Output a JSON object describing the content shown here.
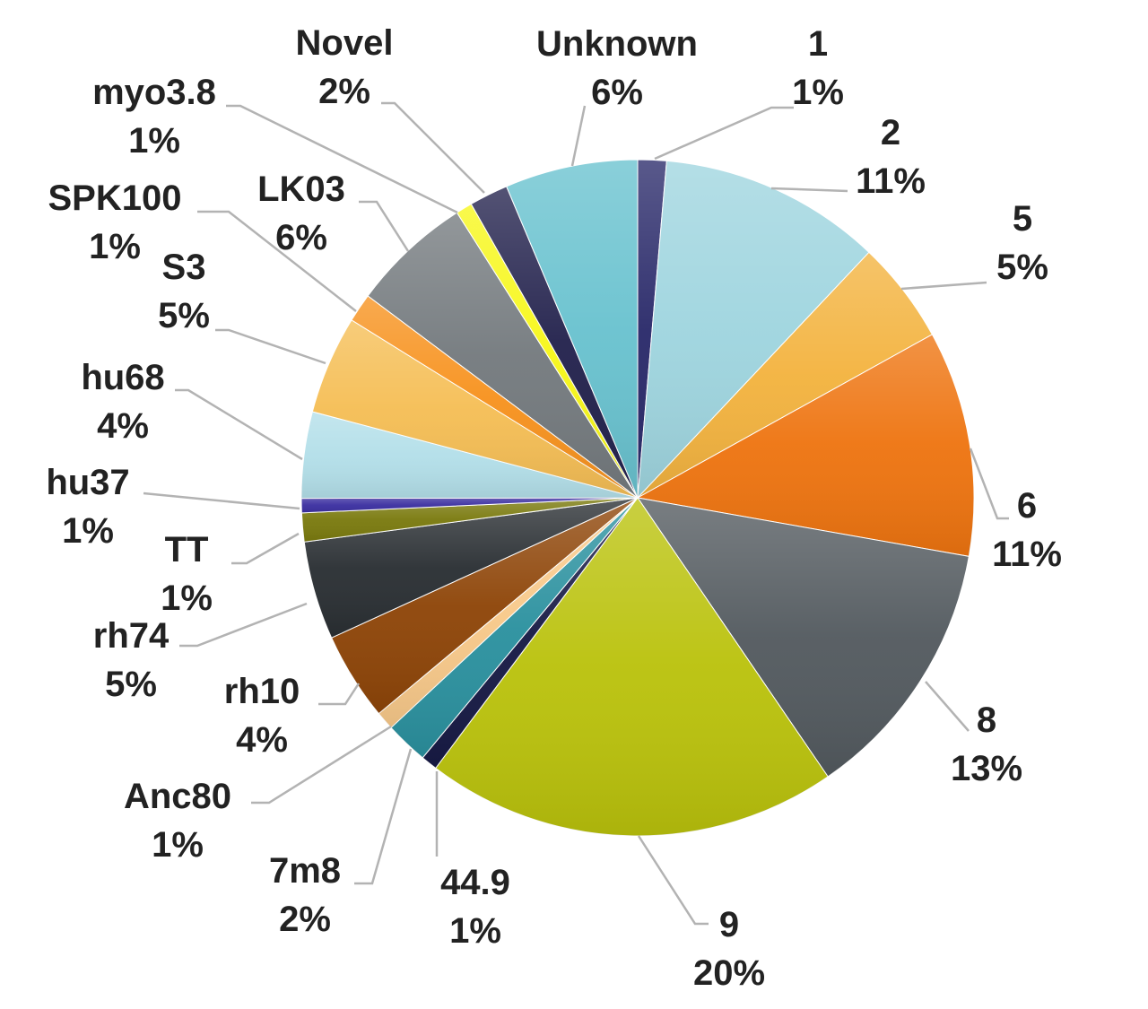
{
  "chart_data": {
    "type": "pie",
    "title": "",
    "slices": [
      {
        "name": "1",
        "pct_label": "1%",
        "value": 1.4,
        "color": "#2a2a6a"
      },
      {
        "name": "2",
        "pct_label": "11%",
        "value": 10.9,
        "color": "#9fd5df"
      },
      {
        "name": "5",
        "pct_label": "5%",
        "value": 5.0,
        "color": "#f3b33f"
      },
      {
        "name": "6",
        "pct_label": "11%",
        "value": 11.0,
        "color": "#ee7410"
      },
      {
        "name": "8",
        "pct_label": "13%",
        "value": 12.9,
        "color": "#535a5f"
      },
      {
        "name": "9",
        "pct_label": "20%",
        "value": 20.2,
        "color": "#bac20c"
      },
      {
        "name": "44.9",
        "pct_label": "1%",
        "value": 0.8,
        "color": "#171a45"
      },
      {
        "name": "7m8",
        "pct_label": "2%",
        "value": 2.1,
        "color": "#2b919f"
      },
      {
        "name": "Anc80",
        "pct_label": "1%",
        "value": 0.9,
        "color": "#f8c98a"
      },
      {
        "name": "rh10",
        "pct_label": "4%",
        "value": 4.3,
        "color": "#8e4508"
      },
      {
        "name": "rh74",
        "pct_label": "5%",
        "value": 4.8,
        "color": "#2a2f33"
      },
      {
        "name": "TT",
        "pct_label": "1%",
        "value": 1.4,
        "color": "#7a7a0e"
      },
      {
        "name": "hu37",
        "pct_label": "1%",
        "value": 0.7,
        "color": "#3b2fa0"
      },
      {
        "name": "hu68",
        "pct_label": "4%",
        "value": 4.2,
        "color": "#b3dfe9"
      },
      {
        "name": "S3",
        "pct_label": "5%",
        "value": 4.8,
        "color": "#f5be55"
      },
      {
        "name": "SPK100",
        "pct_label": "1%",
        "value": 1.4,
        "color": "#f7921e"
      },
      {
        "name": "LK03",
        "pct_label": "6%",
        "value": 5.9,
        "color": "#747a7e"
      },
      {
        "name": "myo3.8",
        "pct_label": "1%",
        "value": 0.8,
        "color": "#f7f71a"
      },
      {
        "name": "Novel",
        "pct_label": "2%",
        "value": 1.9,
        "color": "#23224d"
      },
      {
        "name": "Unknown",
        "pct_label": "6%",
        "value": 6.5,
        "color": "#69c2cf"
      }
    ]
  }
}
